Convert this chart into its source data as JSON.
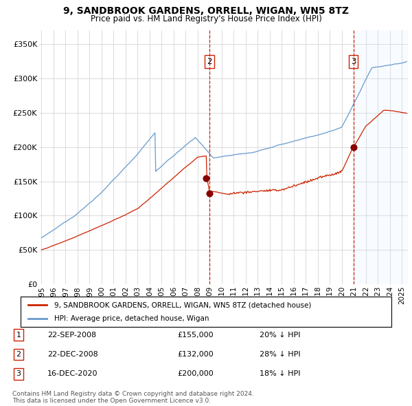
{
  "title": "9, SANDBROOK GARDENS, ORRELL, WIGAN, WN5 8TZ",
  "subtitle": "Price paid vs. HM Land Registry's House Price Index (HPI)",
  "legend_house": "9, SANDBROOK GARDENS, ORRELL, WIGAN, WN5 8TZ (detached house)",
  "legend_hpi": "HPI: Average price, detached house, Wigan",
  "transactions": [
    {
      "label": "1",
      "date_str": "22-SEP-2008",
      "price": "£155,000",
      "pct": "20% ↓ HPI",
      "x_year": 2008.72
    },
    {
      "label": "2",
      "date_str": "22-DEC-2008",
      "price": "£132,000",
      "pct": "28% ↓ HPI",
      "x_year": 2008.97
    },
    {
      "label": "3",
      "date_str": "16-DEC-2020",
      "price": "£200,000",
      "pct": "18% ↓ HPI",
      "x_year": 2020.96
    }
  ],
  "vlines": [
    2008.97,
    2020.96
  ],
  "vline_labels": [
    "2",
    "3"
  ],
  "shade_start": 2020.96,
  "ylim": [
    0,
    370000
  ],
  "xlim_start": 1994.8,
  "xlim_end": 2025.5,
  "ylabel_ticks": [
    0,
    50000,
    100000,
    150000,
    200000,
    250000,
    300000,
    350000
  ],
  "ylabel_labels": [
    "£0",
    "£50K",
    "£100K",
    "£150K",
    "£200K",
    "£250K",
    "£300K",
    "£350K"
  ],
  "xtick_years": [
    1995,
    1996,
    1997,
    1998,
    1999,
    2000,
    2001,
    2002,
    2003,
    2004,
    2005,
    2006,
    2007,
    2008,
    2009,
    2010,
    2011,
    2012,
    2013,
    2014,
    2015,
    2016,
    2017,
    2018,
    2019,
    2020,
    2021,
    2022,
    2023,
    2024,
    2025
  ],
  "hpi_color": "#6699cc",
  "house_color": "#cc2200",
  "marker_color": "#880000",
  "vline_color": "#cc2200",
  "shade_color": "#ddeeff",
  "grid_color": "#cccccc",
  "bg_color": "#ffffff",
  "footer": "Contains HM Land Registry data © Crown copyright and database right 2024.\nThis data is licensed under the Open Government Licence v3.0."
}
